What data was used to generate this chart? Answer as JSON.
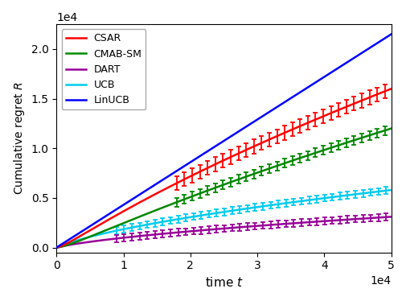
{
  "xlabel": "time $t$",
  "ylabel": "Cumulative regret $R$",
  "xlim": [
    0,
    50000
  ],
  "ylim": [
    -500,
    22500
  ],
  "legend_order": [
    "CSAR",
    "CMAB-SM",
    "DART",
    "UCB",
    "LinUCB"
  ],
  "colors": {
    "CSAR": "#ff0000",
    "CMAB-SM": "#008800",
    "DART": "#990099",
    "UCB": "#00ccee",
    "LinUCB": "#0000ff"
  },
  "end_values": {
    "CSAR": 16000,
    "CMAB-SM": 12000,
    "DART": 3100,
    "UCB": 5800,
    "LinUCB": 21500
  },
  "n_points": 1000,
  "eb_start_t": 18000,
  "eb_interval_t": 1200,
  "eb_size": {
    "CSAR": 700,
    "CMAB-SM": 450,
    "DART": 350,
    "UCB": 350
  },
  "yticks": [
    0.0,
    0.5,
    1.0,
    1.5,
    2.0
  ],
  "xticks": [
    0,
    1,
    2,
    3,
    4,
    5
  ]
}
